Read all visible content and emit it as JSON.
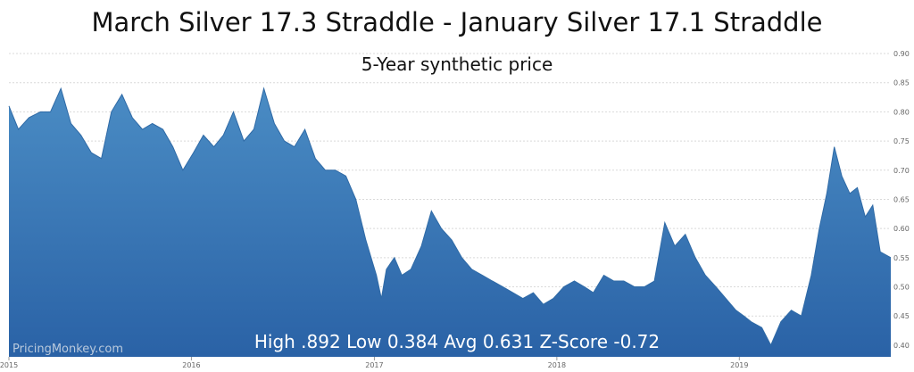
{
  "chart_data": {
    "type": "area",
    "title": "March  Silver 17.3 Straddle - January Silver  17.1 Straddle",
    "subtitle": "5-Year synthetic price",
    "stats_text": "High .892 Low 0.384 Avg 0.631 Z-Score -0.72",
    "watermark": "PricingMonkey.com",
    "ylim": [
      0.38,
      0.9
    ],
    "xlim": [
      "2015-01-01",
      "2019-10-31"
    ],
    "y_ticks": [
      "0.40",
      "0.45",
      "0.50",
      "0.55",
      "0.60",
      "0.65",
      "0.70",
      "0.75",
      "0.80",
      "0.85",
      "0.90"
    ],
    "x_ticks": [
      "2015",
      "2016",
      "2017",
      "2018",
      "2019"
    ],
    "grid": true,
    "colors": {
      "fill_top": "#4a8cc4",
      "fill_bottom": "#2a62a6",
      "line": "#2f6aa6",
      "grid": "#d9d9d9",
      "axis_text": "#666666"
    },
    "series": [
      {
        "x": [
          "2015-01-01",
          "2015-01-20",
          "2015-02-10",
          "2015-03-05",
          "2015-03-25",
          "2015-04-15",
          "2015-05-05",
          "2015-05-25",
          "2015-06-15",
          "2015-07-05",
          "2015-07-25",
          "2015-08-15",
          "2015-09-05",
          "2015-09-25",
          "2015-10-15",
          "2015-11-05",
          "2015-11-25",
          "2015-12-15",
          "2016-01-05",
          "2016-01-25",
          "2016-02-15",
          "2016-03-05",
          "2016-03-25",
          "2016-04-15",
          "2016-05-05",
          "2016-05-25",
          "2016-06-15",
          "2016-07-05",
          "2016-07-25",
          "2016-08-15",
          "2016-09-05",
          "2016-09-25",
          "2016-10-15",
          "2016-11-05",
          "2016-11-25",
          "2016-12-15",
          "2017-01-05",
          "2017-01-15",
          "2017-01-25",
          "2017-02-10",
          "2017-02-25",
          "2017-03-15",
          "2017-04-05",
          "2017-04-25",
          "2017-05-15",
          "2017-06-05",
          "2017-06-25",
          "2017-07-15",
          "2017-08-05",
          "2017-08-25",
          "2017-09-15",
          "2017-10-05",
          "2017-10-25",
          "2017-11-15",
          "2017-12-05",
          "2017-12-25",
          "2018-01-15",
          "2018-02-05",
          "2018-02-25",
          "2018-03-15",
          "2018-04-05",
          "2018-04-25",
          "2018-05-15",
          "2018-06-05",
          "2018-06-25",
          "2018-07-15",
          "2018-08-05",
          "2018-08-25",
          "2018-09-15",
          "2018-10-05",
          "2018-10-25",
          "2018-11-15",
          "2018-12-05",
          "2018-12-25",
          "2019-01-10",
          "2019-01-25",
          "2019-02-15",
          "2019-03-05",
          "2019-03-25",
          "2019-04-15",
          "2019-05-05",
          "2019-05-25",
          "2019-06-10",
          "2019-06-25",
          "2019-07-10",
          "2019-07-25",
          "2019-08-10",
          "2019-08-25",
          "2019-09-10",
          "2019-09-25",
          "2019-10-10",
          "2019-10-31"
        ],
        "y": [
          0.81,
          0.77,
          0.79,
          0.8,
          0.8,
          0.84,
          0.78,
          0.76,
          0.73,
          0.72,
          0.8,
          0.83,
          0.79,
          0.77,
          0.78,
          0.77,
          0.74,
          0.7,
          0.73,
          0.76,
          0.74,
          0.76,
          0.8,
          0.75,
          0.77,
          0.84,
          0.78,
          0.75,
          0.74,
          0.77,
          0.72,
          0.7,
          0.7,
          0.69,
          0.65,
          0.58,
          0.52,
          0.48,
          0.53,
          0.55,
          0.52,
          0.53,
          0.57,
          0.63,
          0.6,
          0.58,
          0.55,
          0.53,
          0.52,
          0.51,
          0.5,
          0.49,
          0.48,
          0.49,
          0.47,
          0.48,
          0.5,
          0.51,
          0.5,
          0.49,
          0.52,
          0.51,
          0.51,
          0.5,
          0.5,
          0.51,
          0.61,
          0.57,
          0.59,
          0.55,
          0.52,
          0.5,
          0.48,
          0.46,
          0.45,
          0.44,
          0.43,
          0.4,
          0.44,
          0.46,
          0.45,
          0.52,
          0.6,
          0.66,
          0.74,
          0.69,
          0.66,
          0.67,
          0.62,
          0.64,
          0.56,
          0.55
        ]
      }
    ]
  }
}
